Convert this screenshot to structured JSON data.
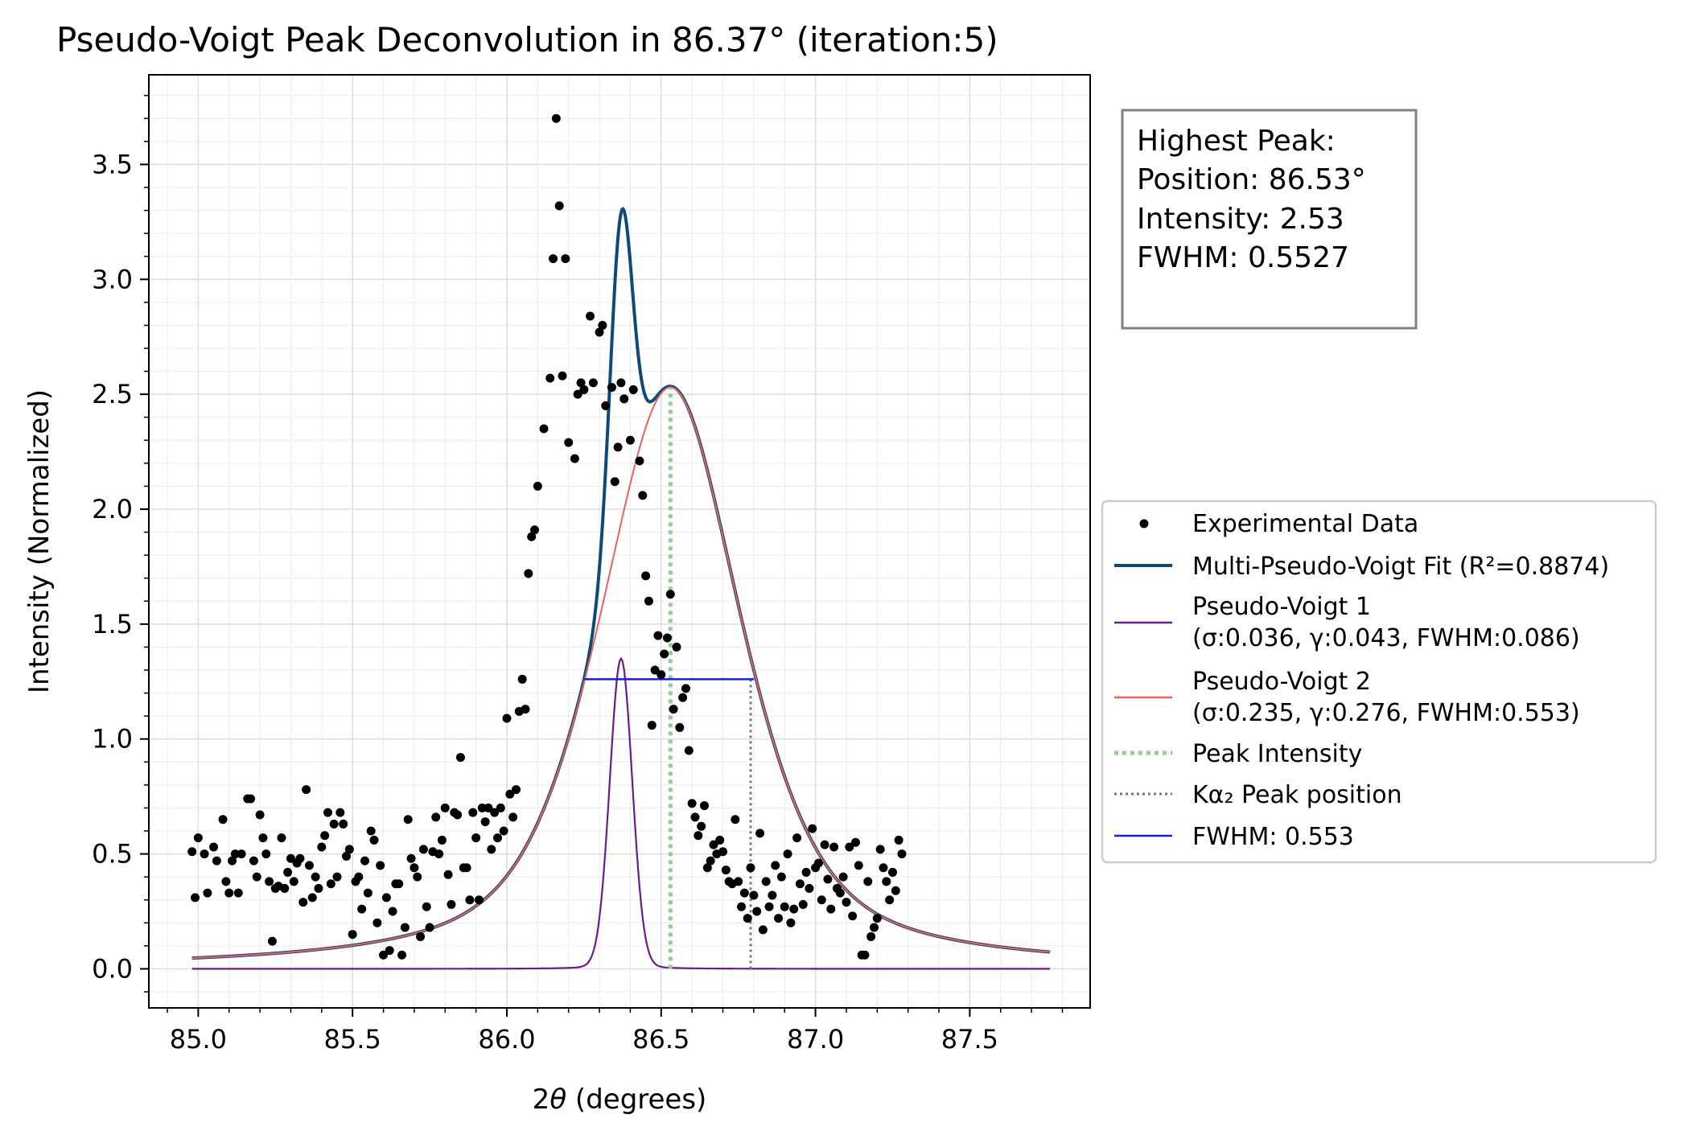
{
  "chart_data": {
    "type": "scatter",
    "title": "Pseudo-Voigt Peak Deconvolution in 86.37° (iteration:5)",
    "xlabel_prefix": "2",
    "xlabel_symbol": "θ",
    "xlabel_suffix": " (degrees)",
    "ylabel": "Intensity (Normalized)",
    "xlim": [
      84.84,
      87.89
    ],
    "ylim": [
      -0.17,
      3.89
    ],
    "xticks": [
      85.0,
      85.5,
      86.0,
      86.5,
      87.0,
      87.5
    ],
    "xtick_labels": [
      "85.0",
      "85.5",
      "86.0",
      "86.5",
      "87.0",
      "87.5"
    ],
    "yticks": [
      0.0,
      0.5,
      1.0,
      1.5,
      2.0,
      2.5,
      3.0,
      3.5
    ],
    "ytick_labels": [
      "0.0",
      "0.5",
      "1.0",
      "1.5",
      "2.0",
      "2.5",
      "3.0",
      "3.5"
    ],
    "grid": true,
    "legend_position": "right",
    "info_box": {
      "line1": "Highest Peak:",
      "line2": "Position: 86.53°",
      "line3": "Intensity: 2.53",
      "line4": "FWHM: 0.5527"
    },
    "legend": [
      {
        "key": "data",
        "label": "Experimental Data",
        "color": "#000000"
      },
      {
        "key": "fit",
        "label": "Multi-Pseudo-Voigt Fit (R²=0.8874)",
        "color": "#0d4a78"
      },
      {
        "key": "pv1",
        "label": "Pseudo-Voigt 1",
        "label2": "(σ:0.036, γ:0.043, FWHM:0.086)",
        "color": "#6a1b8c"
      },
      {
        "key": "pv2",
        "label": "Pseudo-Voigt 2",
        "label2": "(σ:0.235, γ:0.276, FWHM:0.553)",
        "color": "#e8615f"
      },
      {
        "key": "peak",
        "label": "Peak Intensity",
        "color": "#8fcf8f"
      },
      {
        "key": "ka2",
        "label": "Kα₂ Peak position",
        "color": "#777777"
      },
      {
        "key": "fwhm",
        "label": "FWHM: 0.553",
        "color": "#1a1ae6"
      }
    ],
    "peak_line": {
      "x": 86.53,
      "y": [
        0.0,
        2.53
      ]
    },
    "ka2_line": {
      "x": 86.79,
      "y": [
        0.0,
        1.26
      ]
    },
    "fwhm_line": {
      "x": [
        86.25,
        86.8
      ],
      "y": 1.26
    },
    "components": [
      {
        "name": "Pseudo-Voigt 1",
        "center": 86.37,
        "amplitude": 1.35,
        "fwhm": 0.086,
        "eta": 0.05
      },
      {
        "name": "Pseudo-Voigt 2",
        "center": 86.53,
        "amplitude": 2.53,
        "fwhm": 0.553,
        "eta": 0.6
      }
    ],
    "curve_range": [
      84.98,
      87.76
    ],
    "fit_range": [
      86.25,
      87.76
    ],
    "points": [
      [
        84.98,
        0.51
      ],
      [
        84.99,
        0.31
      ],
      [
        85.0,
        0.57
      ],
      [
        85.02,
        0.5
      ],
      [
        85.03,
        0.33
      ],
      [
        85.05,
        0.53
      ],
      [
        85.06,
        0.47
      ],
      [
        85.08,
        0.65
      ],
      [
        85.09,
        0.38
      ],
      [
        85.1,
        0.33
      ],
      [
        85.11,
        0.47
      ],
      [
        85.12,
        0.5
      ],
      [
        85.13,
        0.33
      ],
      [
        85.14,
        0.5
      ],
      [
        85.16,
        0.74
      ],
      [
        85.17,
        0.74
      ],
      [
        85.18,
        0.47
      ],
      [
        85.19,
        0.4
      ],
      [
        85.2,
        0.67
      ],
      [
        85.21,
        0.57
      ],
      [
        85.22,
        0.5
      ],
      [
        85.23,
        0.38
      ],
      [
        85.24,
        0.12
      ],
      [
        85.25,
        0.35
      ],
      [
        85.26,
        0.36
      ],
      [
        85.27,
        0.57
      ],
      [
        85.28,
        0.35
      ],
      [
        85.29,
        0.42
      ],
      [
        85.3,
        0.48
      ],
      [
        85.31,
        0.38
      ],
      [
        85.32,
        0.46
      ],
      [
        85.33,
        0.48
      ],
      [
        85.34,
        0.29
      ],
      [
        85.35,
        0.78
      ],
      [
        85.36,
        0.45
      ],
      [
        85.37,
        0.31
      ],
      [
        85.38,
        0.4
      ],
      [
        85.39,
        0.35
      ],
      [
        85.4,
        0.53
      ],
      [
        85.41,
        0.58
      ],
      [
        85.42,
        0.68
      ],
      [
        85.43,
        0.37
      ],
      [
        85.44,
        0.63
      ],
      [
        85.45,
        0.4
      ],
      [
        85.46,
        0.68
      ],
      [
        85.47,
        0.63
      ],
      [
        85.48,
        0.49
      ],
      [
        85.49,
        0.52
      ],
      [
        85.5,
        0.15
      ],
      [
        85.51,
        0.38
      ],
      [
        85.52,
        0.4
      ],
      [
        85.53,
        0.26
      ],
      [
        85.54,
        0.47
      ],
      [
        85.55,
        0.33
      ],
      [
        85.56,
        0.6
      ],
      [
        85.57,
        0.56
      ],
      [
        85.58,
        0.2
      ],
      [
        85.59,
        0.45
      ],
      [
        85.6,
        0.06
      ],
      [
        85.61,
        0.31
      ],
      [
        85.62,
        0.08
      ],
      [
        85.63,
        0.25
      ],
      [
        85.64,
        0.37
      ],
      [
        85.65,
        0.37
      ],
      [
        85.66,
        0.06
      ],
      [
        85.67,
        0.18
      ],
      [
        85.68,
        0.65
      ],
      [
        85.69,
        0.48
      ],
      [
        85.7,
        0.44
      ],
      [
        85.71,
        0.4
      ],
      [
        85.72,
        0.14
      ],
      [
        85.73,
        0.52
      ],
      [
        85.74,
        0.27
      ],
      [
        85.75,
        0.18
      ],
      [
        85.76,
        0.51
      ],
      [
        85.77,
        0.66
      ],
      [
        85.78,
        0.5
      ],
      [
        85.79,
        0.56
      ],
      [
        85.8,
        0.7
      ],
      [
        85.81,
        0.41
      ],
      [
        85.82,
        0.28
      ],
      [
        85.83,
        0.68
      ],
      [
        85.84,
        0.67
      ],
      [
        85.85,
        0.92
      ],
      [
        85.86,
        0.44
      ],
      [
        85.87,
        0.44
      ],
      [
        85.88,
        0.3
      ],
      [
        85.89,
        0.68
      ],
      [
        85.9,
        0.57
      ],
      [
        85.91,
        0.3
      ],
      [
        85.92,
        0.7
      ],
      [
        85.93,
        0.64
      ],
      [
        85.94,
        0.7
      ],
      [
        85.95,
        0.52
      ],
      [
        85.96,
        0.68
      ],
      [
        85.97,
        0.57
      ],
      [
        85.98,
        0.7
      ],
      [
        85.99,
        0.6
      ],
      [
        86.0,
        1.09
      ],
      [
        86.01,
        0.76
      ],
      [
        86.02,
        0.66
      ],
      [
        86.03,
        0.78
      ],
      [
        86.04,
        1.12
      ],
      [
        86.05,
        1.26
      ],
      [
        86.06,
        1.13
      ],
      [
        86.07,
        1.72
      ],
      [
        86.08,
        1.88
      ],
      [
        86.09,
        1.91
      ],
      [
        86.1,
        2.1
      ],
      [
        86.12,
        2.35
      ],
      [
        86.14,
        2.57
      ],
      [
        86.15,
        3.09
      ],
      [
        86.16,
        3.7
      ],
      [
        86.17,
        3.32
      ],
      [
        86.18,
        2.58
      ],
      [
        86.19,
        3.09
      ],
      [
        86.2,
        2.29
      ],
      [
        86.22,
        2.22
      ],
      [
        86.23,
        2.5
      ],
      [
        86.24,
        2.55
      ],
      [
        86.25,
        2.52
      ],
      [
        86.27,
        2.84
      ],
      [
        86.28,
        2.55
      ],
      [
        86.3,
        2.77
      ],
      [
        86.31,
        2.8
      ],
      [
        86.32,
        2.45
      ],
      [
        86.34,
        2.53
      ],
      [
        86.35,
        2.12
      ],
      [
        86.36,
        2.27
      ],
      [
        86.37,
        2.55
      ],
      [
        86.38,
        2.48
      ],
      [
        86.4,
        2.3
      ],
      [
        86.41,
        2.52
      ],
      [
        86.43,
        2.21
      ],
      [
        86.44,
        2.06
      ],
      [
        86.45,
        1.71
      ],
      [
        86.46,
        1.6
      ],
      [
        86.47,
        1.06
      ],
      [
        86.48,
        1.3
      ],
      [
        86.49,
        1.45
      ],
      [
        86.5,
        1.28
      ],
      [
        86.51,
        1.37
      ],
      [
        86.52,
        1.44
      ],
      [
        86.53,
        1.63
      ],
      [
        86.54,
        1.13
      ],
      [
        86.55,
        1.4
      ],
      [
        86.56,
        1.05
      ],
      [
        86.57,
        1.18
      ],
      [
        86.58,
        1.22
      ],
      [
        86.59,
        0.95
      ],
      [
        86.6,
        0.72
      ],
      [
        86.61,
        0.66
      ],
      [
        86.62,
        0.58
      ],
      [
        86.63,
        0.62
      ],
      [
        86.64,
        0.71
      ],
      [
        86.65,
        0.44
      ],
      [
        86.66,
        0.47
      ],
      [
        86.67,
        0.54
      ],
      [
        86.68,
        0.5
      ],
      [
        86.69,
        0.56
      ],
      [
        86.7,
        0.51
      ],
      [
        86.71,
        0.43
      ],
      [
        86.72,
        0.38
      ],
      [
        86.73,
        0.37
      ],
      [
        86.74,
        0.65
      ],
      [
        86.75,
        0.38
      ],
      [
        86.76,
        0.27
      ],
      [
        86.77,
        0.33
      ],
      [
        86.78,
        0.22
      ],
      [
        86.79,
        0.44
      ],
      [
        86.8,
        0.32
      ],
      [
        86.81,
        0.25
      ],
      [
        86.82,
        0.59
      ],
      [
        86.83,
        0.17
      ],
      [
        86.84,
        0.38
      ],
      [
        86.85,
        0.27
      ],
      [
        86.86,
        0.32
      ],
      [
        86.87,
        0.45
      ],
      [
        86.88,
        0.22
      ],
      [
        86.89,
        0.4
      ],
      [
        86.9,
        0.27
      ],
      [
        86.91,
        0.5
      ],
      [
        86.92,
        0.2
      ],
      [
        86.93,
        0.26
      ],
      [
        86.94,
        0.57
      ],
      [
        86.95,
        0.37
      ],
      [
        86.96,
        0.28
      ],
      [
        86.97,
        0.42
      ],
      [
        86.98,
        0.35
      ],
      [
        86.99,
        0.61
      ],
      [
        87.0,
        0.44
      ],
      [
        87.01,
        0.46
      ],
      [
        87.02,
        0.3
      ],
      [
        87.03,
        0.54
      ],
      [
        87.04,
        0.39
      ],
      [
        87.05,
        0.26
      ],
      [
        87.06,
        0.53
      ],
      [
        87.07,
        0.35
      ],
      [
        87.08,
        0.33
      ],
      [
        87.09,
        0.4
      ],
      [
        87.1,
        0.29
      ],
      [
        87.11,
        0.53
      ],
      [
        87.12,
        0.23
      ],
      [
        87.13,
        0.55
      ],
      [
        87.14,
        0.45
      ],
      [
        87.15,
        0.06
      ],
      [
        87.16,
        0.06
      ],
      [
        87.17,
        0.38
      ],
      [
        87.18,
        0.14
      ],
      [
        87.19,
        0.18
      ],
      [
        87.2,
        0.22
      ],
      [
        87.21,
        0.52
      ],
      [
        87.22,
        0.44
      ],
      [
        87.23,
        0.38
      ],
      [
        87.24,
        0.3
      ],
      [
        87.25,
        0.42
      ],
      [
        87.26,
        0.34
      ],
      [
        87.27,
        0.56
      ],
      [
        87.28,
        0.5
      ]
    ]
  }
}
